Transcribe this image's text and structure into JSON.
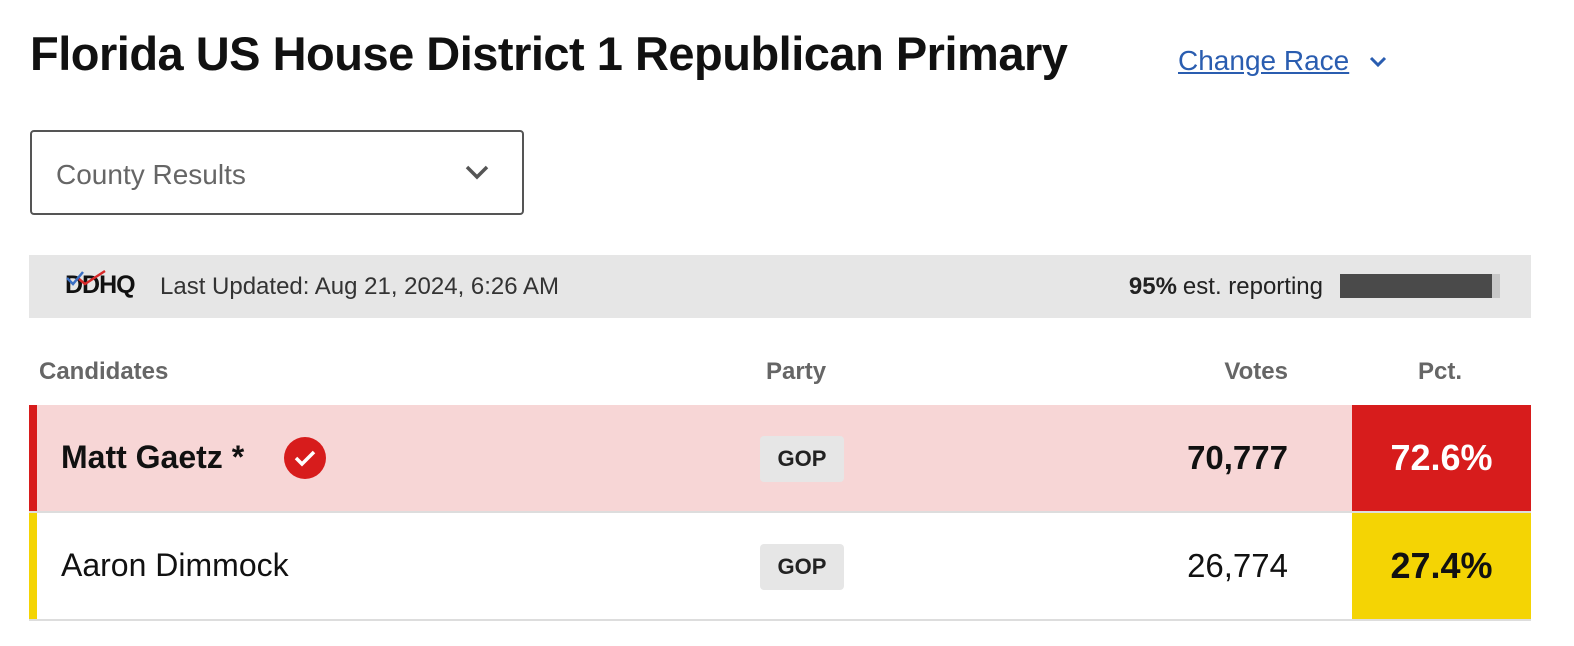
{
  "header": {
    "title": "Florida US House District 1 Republican Primary",
    "change_race": "Change Race"
  },
  "dropdown": {
    "label": "County Results"
  },
  "status": {
    "source": "DDHQ",
    "last_updated": "Last Updated: Aug 21, 2024, 6:26 AM",
    "reporting": {
      "value": 95,
      "label": "95%"
    },
    "reporting_text": "est. reporting"
  },
  "table": {
    "headers": [
      "Candidates",
      "Party",
      "Votes",
      "Pct."
    ],
    "rows": [
      {
        "name": "Matt Gaetz *",
        "winner": true,
        "party": "GOP",
        "votes": "70,777",
        "pct": "72.6%",
        "color": "#d71c1c",
        "row_bg": "#f7d6d6"
      },
      {
        "name": "Aaron Dimmock",
        "winner": false,
        "party": "GOP",
        "votes": "26,774",
        "pct": "27.4%",
        "color": "#f4d404",
        "row_bg": "#ffffff"
      }
    ]
  }
}
